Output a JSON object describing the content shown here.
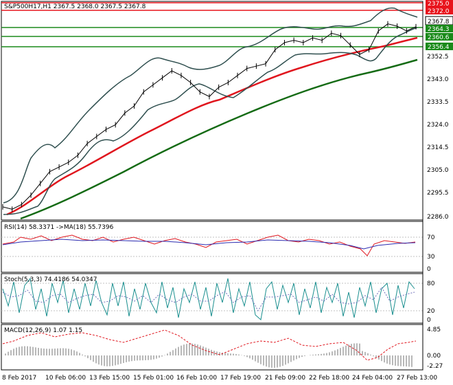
{
  "main": {
    "symbol_label": "S&P500H17,H1  2367.5 2368.0 2367.5 2367.8",
    "price_ticks": [
      "2352.5",
      "2343.0",
      "2333.5",
      "2324.0",
      "2314.5",
      "2305.0",
      "2295.5",
      "2286.0"
    ],
    "levels": [
      {
        "value": "2375.0",
        "kind": "resistance",
        "color": "#e8141c"
      },
      {
        "value": "2372.0",
        "kind": "resistance",
        "color": "#e8141c"
      },
      {
        "value": "2367.8",
        "kind": "current",
        "color": "#ffffff"
      },
      {
        "value": "2364.3",
        "kind": "support",
        "color": "#1a8a1a"
      },
      {
        "value": "2360.6",
        "kind": "support",
        "color": "#1a8a1a"
      },
      {
        "value": "2356.4",
        "kind": "support",
        "color": "#1a8a1a"
      }
    ]
  },
  "rsi": {
    "label": "RSI(14) 58.3371  ->MA(18) 55.7396",
    "ticks": [
      "70",
      "30",
      "0"
    ]
  },
  "stoch": {
    "label": "Stoch(5,3,3) 74.4186 54.0347",
    "ticks": [
      "80",
      "20",
      "0"
    ]
  },
  "macd": {
    "label": "MACD(12,26,9) 1.07 1.15",
    "ticks": [
      "4.85",
      "0.00",
      "-2.27"
    ]
  },
  "time_axis": [
    "8 Feb 2017",
    "10 Feb 06:00",
    "13 Feb 15:00",
    "15 Feb 01:00",
    "16 Feb 10:00",
    "17 Feb 19:00",
    "21 Feb 09:00",
    "22 Feb 18:00",
    "24 Feb 04:00",
    "27 Feb 13:00"
  ],
  "chart_data": {
    "type": "line",
    "title": "S&P500H17,H1",
    "series": [
      {
        "name": "S&P500H17",
        "values": [
          2291,
          2290,
          2292,
          2296,
          2301,
          2306,
          2308,
          2310,
          2313,
          2318,
          2321,
          2324,
          2326,
          2331,
          2334,
          2340,
          2343,
          2346,
          2349,
          2347,
          2344,
          2340,
          2338,
          2342,
          2344,
          2347,
          2350,
          2351,
          2352,
          2358,
          2361,
          2362,
          2361,
          2363,
          2362,
          2365,
          2364,
          2360,
          2356,
          2358,
          2366,
          2369,
          2368,
          2366,
          2367.8
        ]
      }
    ],
    "ylim": [
      2286.0,
      2378.0
    ]
  }
}
